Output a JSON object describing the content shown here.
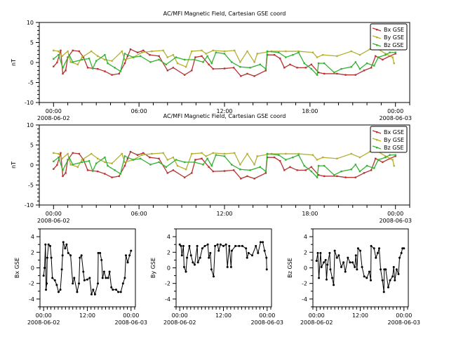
{
  "chart_data": {
    "type": "line",
    "colors": {
      "Bx GSE": "#b83232",
      "By GSE": "#b4b032",
      "Bz GSE": "#32b432",
      "single": "#000000"
    },
    "series": [
      {
        "name": "Bx GSE",
        "points": [
          [
            "2008-06-02 00:00",
            -1
          ],
          [
            "2008-06-02 00:15",
            0
          ],
          [
            "2008-06-02 00:30",
            3
          ],
          [
            "2008-06-02 00:39",
            -2.8
          ],
          [
            "2008-06-02 00:51",
            -2
          ],
          [
            "2008-06-02 01:00",
            1.3
          ],
          [
            "2008-06-02 01:21",
            3
          ],
          [
            "2008-06-02 01:48",
            2.8
          ],
          [
            "2008-06-02 02:06",
            1.3
          ],
          [
            "2008-06-02 02:24",
            -1.3
          ],
          [
            "2008-06-02 03:06",
            -1.6
          ],
          [
            "2008-06-02 03:36",
            -2.2
          ],
          [
            "2008-06-02 04:06",
            -3.1
          ],
          [
            "2008-06-02 04:36",
            -2.8
          ],
          [
            "2008-06-02 05:00",
            -0.2
          ],
          [
            "2008-06-02 05:12",
            1.6
          ],
          [
            "2008-06-02 05:24",
            3.3
          ],
          [
            "2008-06-02 05:54",
            2.5
          ],
          [
            "2008-06-02 06:18",
            3
          ],
          [
            "2008-06-02 06:45",
            1.9
          ],
          [
            "2008-06-02 07:24",
            1.6
          ],
          [
            "2008-06-02 08:00",
            -2
          ],
          [
            "2008-06-02 08:24",
            -1.3
          ],
          [
            "2008-06-02 09:12",
            -3.1
          ],
          [
            "2008-06-02 09:42",
            -2
          ],
          [
            "2008-06-02 09:57",
            1.3
          ],
          [
            "2008-06-02 10:24",
            1.6
          ],
          [
            "2008-06-02 10:54",
            -0.5
          ],
          [
            "2008-06-02 11:12",
            -1.6
          ],
          [
            "2008-06-02 12:00",
            -1.5
          ],
          [
            "2008-06-02 12:39",
            -1.3
          ],
          [
            "2008-06-02 13:09",
            -3.4
          ],
          [
            "2008-06-02 13:36",
            -2.8
          ],
          [
            "2008-06-02 14:06",
            -3.4
          ],
          [
            "2008-06-02 14:54",
            -2
          ],
          [
            "2008-06-02 15:00",
            1.9
          ],
          [
            "2008-06-02 15:30",
            1.9
          ],
          [
            "2008-06-02 15:54",
            1
          ],
          [
            "2008-06-02 16:12",
            -1.3
          ],
          [
            "2008-06-02 16:36",
            -0.5
          ],
          [
            "2008-06-02 17:06",
            -1.3
          ],
          [
            "2008-06-02 17:42",
            -1.3
          ],
          [
            "2008-06-02 18:06",
            -0.5
          ],
          [
            "2008-06-02 18:36",
            -2.5
          ],
          [
            "2008-06-02 19:00",
            -2.8
          ],
          [
            "2008-06-02 19:54",
            -2.8
          ],
          [
            "2008-06-02 20:30",
            -3.1
          ],
          [
            "2008-06-02 21:12",
            -3.1
          ],
          [
            "2008-06-02 21:48",
            -2
          ],
          [
            "2008-06-02 22:18",
            -1.3
          ],
          [
            "2008-06-02 22:36",
            1.6
          ],
          [
            "2008-06-02 23:06",
            0.7
          ],
          [
            "2008-06-02 23:36",
            1.6
          ],
          [
            "2008-06-03 00:00",
            2.2
          ]
        ]
      },
      {
        "name": "By GSE",
        "points": [
          [
            "2008-06-02 00:00",
            3
          ],
          [
            "2008-06-02 00:21",
            2.8
          ],
          [
            "2008-06-02 00:36",
            1.6
          ],
          [
            "2008-06-02 01:00",
            2.8
          ],
          [
            "2008-06-02 01:12",
            0.1
          ],
          [
            "2008-06-02 01:42",
            -0.5
          ],
          [
            "2008-06-02 02:00",
            1.3
          ],
          [
            "2008-06-02 02:39",
            2.8
          ],
          [
            "2008-06-02 03:06",
            1.6
          ],
          [
            "2008-06-02 03:36",
            0.7
          ],
          [
            "2008-06-02 04:06",
            0.4
          ],
          [
            "2008-06-02 04:48",
            2.8
          ],
          [
            "2008-06-02 05:00",
            0.7
          ],
          [
            "2008-06-02 05:36",
            1.3
          ],
          [
            "2008-06-02 06:12",
            2.5
          ],
          [
            "2008-06-02 06:54",
            2.8
          ],
          [
            "2008-06-02 07:42",
            3
          ],
          [
            "2008-06-02 08:00",
            1.3
          ],
          [
            "2008-06-02 08:24",
            1.9
          ],
          [
            "2008-06-02 08:42",
            -0.2
          ],
          [
            "2008-06-02 09:18",
            -1.1
          ],
          [
            "2008-06-02 09:42",
            2.8
          ],
          [
            "2008-06-02 10:24",
            3
          ],
          [
            "2008-06-02 10:42",
            2.2
          ],
          [
            "2008-06-02 11:12",
            3
          ],
          [
            "2008-06-02 12:00",
            2.8
          ],
          [
            "2008-06-02 12:42",
            3
          ],
          [
            "2008-06-02 13:06",
            0.1
          ],
          [
            "2008-06-02 13:36",
            2.8
          ],
          [
            "2008-06-02 14:06",
            0.1
          ],
          [
            "2008-06-02 14:18",
            2.2
          ],
          [
            "2008-06-02 15:18",
            2.8
          ],
          [
            "2008-06-02 16:18",
            2.8
          ],
          [
            "2008-06-02 17:12",
            2.8
          ],
          [
            "2008-06-02 18:12",
            2.5
          ],
          [
            "2008-06-02 18:30",
            1.3
          ],
          [
            "2008-06-02 18:54",
            1.9
          ],
          [
            "2008-06-02 19:54",
            1.6
          ],
          [
            "2008-06-02 20:54",
            2.8
          ],
          [
            "2008-06-02 21:30",
            1.9
          ],
          [
            "2008-06-02 22:12",
            3.3
          ],
          [
            "2008-06-02 22:48",
            3.3
          ],
          [
            "2008-06-02 23:18",
            2.2
          ],
          [
            "2008-06-02 23:48",
            1.3
          ],
          [
            "2008-06-02 23:54",
            -0.2
          ]
        ]
      },
      {
        "name": "Bz GSE",
        "points": [
          [
            "2008-06-02 00:00",
            0.9
          ],
          [
            "2008-06-02 00:21",
            1.9
          ],
          [
            "2008-06-02 00:39",
            -1.3
          ],
          [
            "2008-06-02 01:06",
            1.9
          ],
          [
            "2008-06-02 01:21",
            0.1
          ],
          [
            "2008-06-02 02:00",
            0.7
          ],
          [
            "2008-06-02 02:30",
            1
          ],
          [
            "2008-06-02 02:45",
            -1.5
          ],
          [
            "2008-06-02 03:00",
            0.4
          ],
          [
            "2008-06-02 03:36",
            1.9
          ],
          [
            "2008-06-02 03:48",
            -0.2
          ],
          [
            "2008-06-02 04:18",
            -1.3
          ],
          [
            "2008-06-02 04:42",
            -2.2
          ],
          [
            "2008-06-02 05:00",
            2.2
          ],
          [
            "2008-06-02 05:36",
            1.3
          ],
          [
            "2008-06-02 06:06",
            1.6
          ],
          [
            "2008-06-02 06:48",
            0.1
          ],
          [
            "2008-06-02 07:24",
            0.7
          ],
          [
            "2008-06-02 07:54",
            -0.5
          ],
          [
            "2008-06-02 08:36",
            1.3
          ],
          [
            "2008-06-02 09:12",
            0.7
          ],
          [
            "2008-06-02 09:54",
            0.7
          ],
          [
            "2008-06-02 10:30",
            0.1
          ],
          [
            "2008-06-02 10:48",
            1.6
          ],
          [
            "2008-06-02 11:06",
            -0.2
          ],
          [
            "2008-06-02 11:24",
            2.5
          ],
          [
            "2008-06-02 12:00",
            2.2
          ],
          [
            "2008-06-02 12:30",
            0.1
          ],
          [
            "2008-06-02 13:06",
            -1.1
          ],
          [
            "2008-06-02 13:48",
            -1.3
          ],
          [
            "2008-06-02 14:30",
            -0.5
          ],
          [
            "2008-06-02 14:54",
            -1.6
          ],
          [
            "2008-06-02 15:00",
            2.8
          ],
          [
            "2008-06-02 15:48",
            2.5
          ],
          [
            "2008-06-02 16:18",
            1.3
          ],
          [
            "2008-06-02 16:48",
            1.9
          ],
          [
            "2008-06-02 17:12",
            2.5
          ],
          [
            "2008-06-02 17:36",
            -0.2
          ],
          [
            "2008-06-02 18:06",
            -1.6
          ],
          [
            "2008-06-02 18:30",
            -3.1
          ],
          [
            "2008-06-02 18:36",
            -0.2
          ],
          [
            "2008-06-02 19:00",
            -0.2
          ],
          [
            "2008-06-02 19:42",
            -2.5
          ],
          [
            "2008-06-02 20:12",
            -1.6
          ],
          [
            "2008-06-02 20:54",
            -1.1
          ],
          [
            "2008-06-02 21:12",
            0.1
          ],
          [
            "2008-06-02 21:30",
            -1.6
          ],
          [
            "2008-06-02 22:00",
            -0.2
          ],
          [
            "2008-06-02 22:30",
            -0.8
          ],
          [
            "2008-06-02 22:48",
            1.3
          ],
          [
            "2008-06-02 23:18",
            1.9
          ],
          [
            "2008-06-02 23:36",
            2.5
          ],
          [
            "2008-06-03 00:00",
            2.5
          ]
        ]
      }
    ],
    "panels": [
      {
        "title": "AC/MFI  Magnetic Field, Cartesian GSE coord",
        "ylabel": "nT",
        "ylim": [
          -10,
          10
        ],
        "yticks": [
          "-10",
          "-5",
          "0",
          "5",
          "10"
        ],
        "series": [
          "Bx GSE",
          "By GSE",
          "Bz GSE"
        ],
        "legend": "top-right",
        "xticks": [
          {
            "label": "00:00",
            "sublabel": "2008-06-02"
          },
          {
            "label": "06:00",
            "sublabel": ""
          },
          {
            "label": "12:00",
            "sublabel": ""
          },
          {
            "label": "18:00",
            "sublabel": ""
          },
          {
            "label": "00:00",
            "sublabel": "2008-06-03"
          }
        ]
      },
      {
        "title": "AC/MFI  Magnetic Field, Cartesian GSE coord",
        "ylabel": "nT",
        "ylim": [
          -10,
          10
        ],
        "yticks": [
          "-10",
          "-5",
          "0",
          "5",
          "10"
        ],
        "series": [
          "Bx GSE",
          "By GSE",
          "Bz GSE"
        ],
        "legend": "top-right",
        "xticks": [
          {
            "label": "00:00",
            "sublabel": "2008-06-02"
          },
          {
            "label": "06:00",
            "sublabel": ""
          },
          {
            "label": "12:00",
            "sublabel": ""
          },
          {
            "label": "18:00",
            "sublabel": ""
          },
          {
            "label": "00:00",
            "sublabel": "2008-06-03"
          }
        ]
      },
      {
        "title": "",
        "ylabel": "Bx  GSE",
        "ylim": [
          -5,
          5
        ],
        "yticks": [
          "-4",
          "-2",
          "0",
          "2",
          "4"
        ],
        "series": [
          "Bx GSE"
        ],
        "xticks": [
          {
            "label": "00:00",
            "sublabel": "2008-06-02"
          },
          {
            "label": "12:00",
            "sublabel": ""
          },
          {
            "label": "00:00",
            "sublabel": "2008-06-03"
          }
        ]
      },
      {
        "title": "",
        "ylabel": "By  GSE",
        "ylim": [
          -5,
          5
        ],
        "yticks": [
          "-4",
          "-2",
          "0",
          "2",
          "4"
        ],
        "series": [
          "By GSE"
        ],
        "xticks": [
          {
            "label": "00:00",
            "sublabel": "2008-06-02"
          },
          {
            "label": "12:00",
            "sublabel": ""
          },
          {
            "label": "00:00",
            "sublabel": "2008-06-03"
          }
        ]
      },
      {
        "title": "",
        "ylabel": "Bz  GSE",
        "ylim": [
          -5,
          5
        ],
        "yticks": [
          "-4",
          "-2",
          "0",
          "2",
          "4"
        ],
        "series": [
          "Bz GSE"
        ],
        "xticks": [
          {
            "label": "00:00",
            "sublabel": "2008-06-02"
          },
          {
            "label": "12:00",
            "sublabel": ""
          },
          {
            "label": "00:00",
            "sublabel": "2008-06-03"
          }
        ]
      }
    ]
  }
}
